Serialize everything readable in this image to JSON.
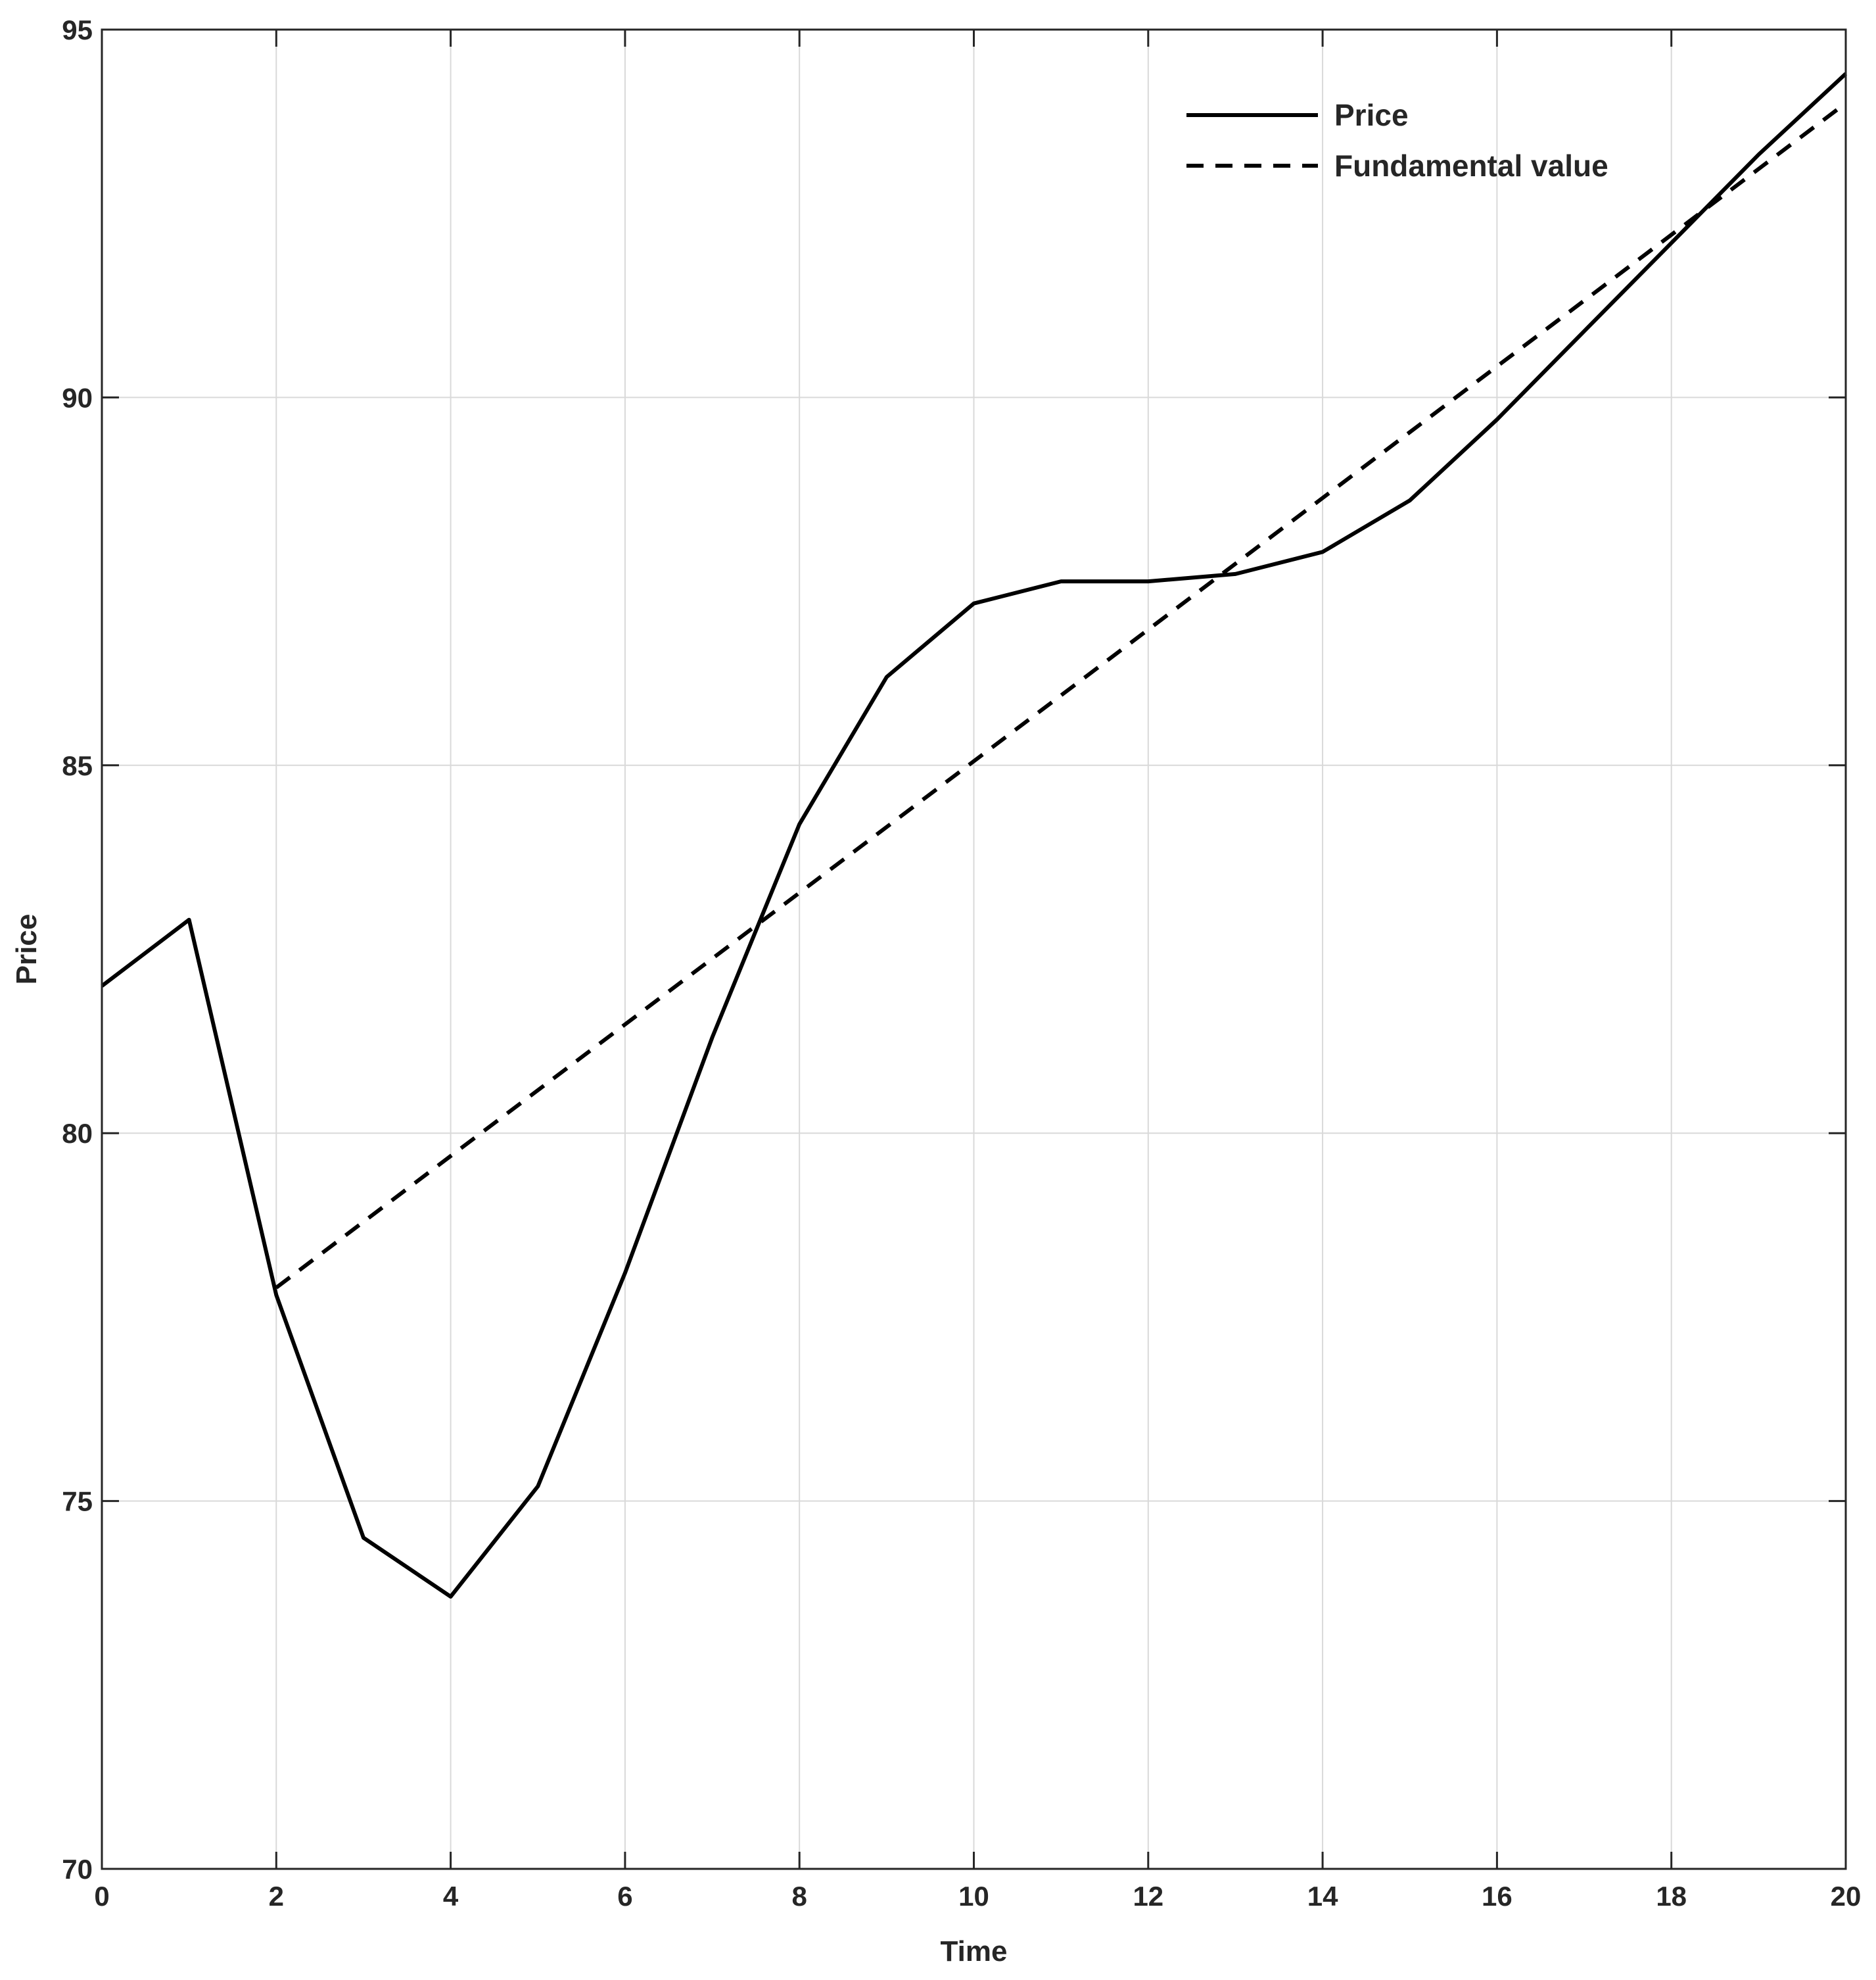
{
  "chart_data": {
    "type": "line",
    "xlabel": "Time",
    "ylabel": "Price",
    "xlim": [
      0,
      20
    ],
    "ylim": [
      70,
      95
    ],
    "xticks": [
      "0",
      "2",
      "4",
      "6",
      "8",
      "10",
      "12",
      "14",
      "16",
      "18",
      "20"
    ],
    "yticks": [
      "70",
      "75",
      "80",
      "85",
      "90",
      "95"
    ],
    "grid": true,
    "legend_position": "top-right",
    "series": [
      {
        "name": "Price",
        "style": "solid",
        "color": "#000000",
        "x": [
          0,
          1,
          2,
          3,
          4,
          5,
          6,
          7,
          8,
          9,
          10,
          11,
          12,
          13,
          14,
          15,
          16,
          17,
          18,
          19,
          20
        ],
        "y": [
          82.0,
          82.9,
          77.8,
          74.5,
          73.7,
          75.2,
          78.1,
          81.3,
          84.2,
          86.2,
          87.2,
          87.5,
          87.5,
          87.6,
          87.9,
          88.6,
          89.7,
          90.9,
          92.1,
          93.3,
          94.4
        ]
      },
      {
        "name": "Fundamental value",
        "style": "dashed",
        "color": "#000000",
        "x": [
          2,
          20
        ],
        "y": [
          77.9,
          94.0
        ]
      }
    ]
  }
}
